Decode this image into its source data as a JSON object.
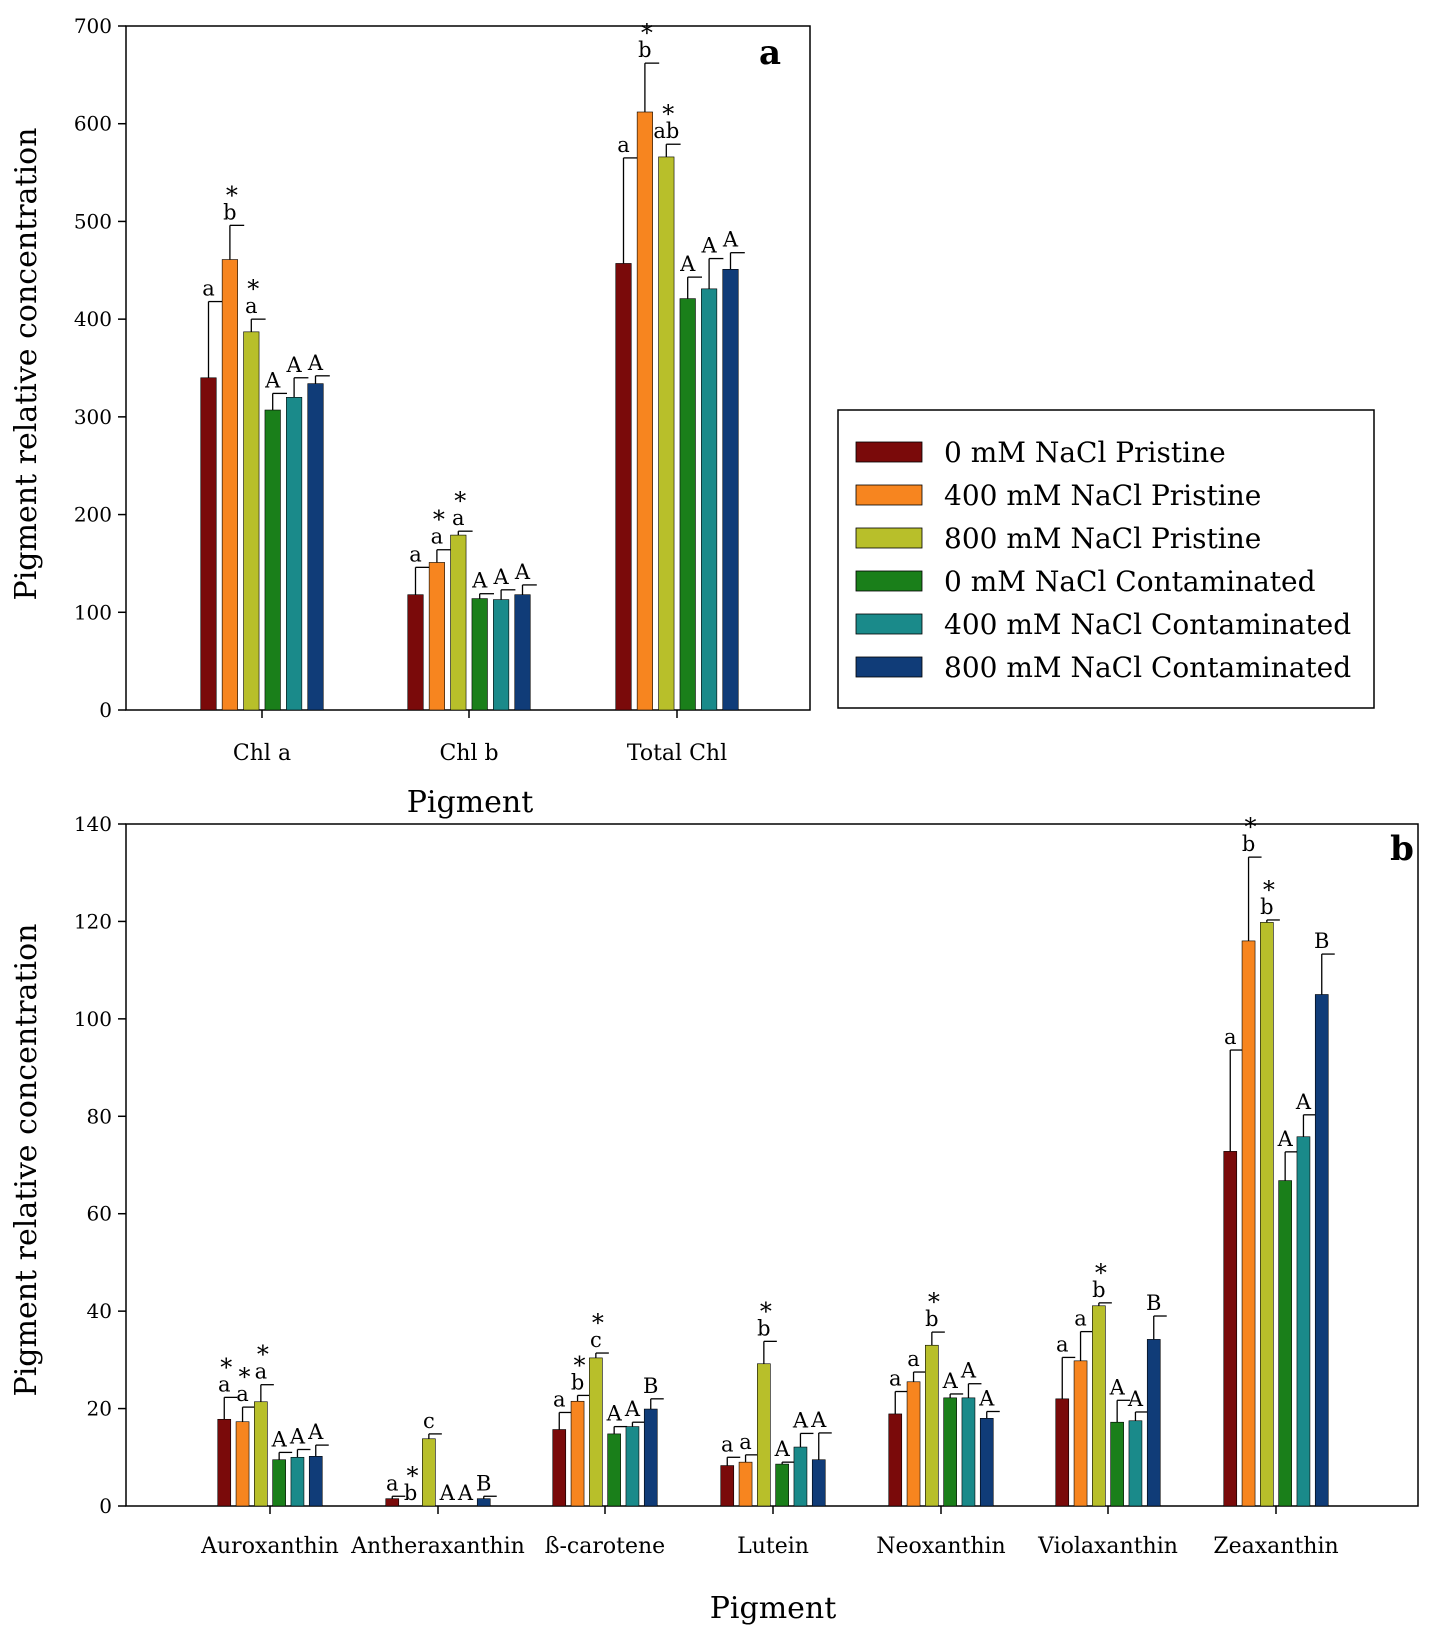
{
  "legend": [
    {
      "name": "0 mM NaCl Pristine",
      "color": "#7a0a0a"
    },
    {
      "name": "400 mM NaCl Pristine",
      "color": "#f7851f"
    },
    {
      "name": "800 mM NaCl Pristine",
      "color": "#b8bf2a"
    },
    {
      "name": "0 mM NaCl Contaminated",
      "color": "#1a7f1a"
    },
    {
      "name": "400 mM NaCl Contaminated",
      "color": "#1a8a8a"
    },
    {
      "name": "800 mM NaCl Contaminated",
      "color": "#103c78"
    }
  ],
  "chart_data": [
    {
      "id": "a",
      "type": "bar",
      "panel_label": "a",
      "xlabel": "Pigment",
      "ylabel": "Pigment relative concentration",
      "ylim": [
        0,
        700
      ],
      "yticks": [
        0,
        100,
        200,
        300,
        400,
        500,
        600,
        700
      ],
      "categories": [
        "Chl a",
        "Chl b",
        "Total Chl"
      ],
      "series": [
        {
          "name": "0 mM NaCl Pristine",
          "values": [
            340,
            118,
            457
          ],
          "errors": [
            78,
            28,
            108
          ],
          "letters": [
            "a",
            "a",
            "a"
          ],
          "stars": [
            false,
            false,
            false
          ]
        },
        {
          "name": "400 mM NaCl Pristine",
          "values": [
            461,
            151,
            612
          ],
          "errors": [
            35,
            13,
            50
          ],
          "letters": [
            "b",
            "a",
            "b"
          ],
          "stars": [
            true,
            true,
            true
          ]
        },
        {
          "name": "800 mM NaCl Pristine",
          "values": [
            387,
            179,
            566
          ],
          "errors": [
            13,
            4,
            13
          ],
          "letters": [
            "a",
            "a",
            "ab"
          ],
          "stars": [
            true,
            true,
            true
          ]
        },
        {
          "name": "0 mM NaCl Contaminated",
          "values": [
            307,
            114,
            421
          ],
          "errors": [
            17,
            5,
            22
          ],
          "letters": [
            "A",
            "A",
            "A"
          ],
          "stars": [
            false,
            false,
            false
          ]
        },
        {
          "name": "400 mM NaCl Contaminated",
          "values": [
            320,
            113,
            431
          ],
          "errors": [
            20,
            10,
            31
          ],
          "letters": [
            "A",
            "A",
            "A"
          ],
          "stars": [
            false,
            false,
            false
          ]
        },
        {
          "name": "800 mM NaCl Contaminated",
          "values": [
            334,
            118,
            451
          ],
          "errors": [
            8,
            10,
            17
          ],
          "letters": [
            "A",
            "A",
            "A"
          ],
          "stars": [
            false,
            false,
            false
          ]
        }
      ]
    },
    {
      "id": "b",
      "type": "bar",
      "panel_label": "b",
      "xlabel": "Pigment",
      "ylabel": "Pigment relative concentration",
      "ylim": [
        0,
        140
      ],
      "yticks": [
        0,
        20,
        40,
        60,
        80,
        100,
        120,
        140
      ],
      "categories": [
        "Auroxanthin",
        "Antheraxanthin",
        "ß-carotene",
        "Lutein",
        "Neoxanthin",
        "Violaxanthin",
        "Zeaxanthin"
      ],
      "series": [
        {
          "name": "0 mM NaCl Pristine",
          "values": [
            17.8,
            1.5,
            15.7,
            8.3,
            18.9,
            22.0,
            72.8
          ],
          "errors": [
            4.5,
            0.5,
            3.5,
            1.7,
            4.6,
            8.5,
            20.8
          ],
          "letters": [
            "a",
            "a",
            "a",
            "a",
            "a",
            "a",
            "a"
          ],
          "stars": [
            true,
            false,
            false,
            false,
            false,
            false,
            false
          ]
        },
        {
          "name": "400 mM NaCl Pristine",
          "values": [
            17.3,
            0,
            21.5,
            9.0,
            25.5,
            29.8,
            116.0
          ],
          "errors": [
            3.0,
            0,
            1.2,
            1.5,
            2.0,
            6.0,
            17.2
          ],
          "letters": [
            "a",
            "b",
            "b",
            "a",
            "a",
            "a",
            "b"
          ],
          "stars": [
            true,
            true,
            true,
            false,
            false,
            false,
            true
          ]
        },
        {
          "name": "800 mM NaCl Pristine",
          "values": [
            21.4,
            13.8,
            30.4,
            29.2,
            33.0,
            41.1,
            119.8
          ],
          "errors": [
            3.5,
            1.0,
            1.0,
            4.6,
            2.7,
            0.6,
            0.5
          ],
          "letters": [
            "a",
            "c",
            "c",
            "b",
            "b",
            "b",
            "b"
          ],
          "stars": [
            true,
            false,
            true,
            true,
            true,
            true,
            true
          ]
        },
        {
          "name": "0 mM NaCl Contaminated",
          "values": [
            9.5,
            0,
            14.8,
            8.6,
            22.2,
            17.2,
            66.8
          ],
          "errors": [
            1.5,
            0,
            1.5,
            0.4,
            0.8,
            4.5,
            5.9
          ],
          "letters": [
            "A",
            "A",
            "A",
            "A",
            "A",
            "A",
            "A"
          ],
          "stars": [
            false,
            false,
            false,
            false,
            false,
            false,
            false
          ]
        },
        {
          "name": "400 mM NaCl Contaminated",
          "values": [
            10.0,
            0,
            16.3,
            12.1,
            22.2,
            17.5,
            75.8
          ],
          "errors": [
            1.6,
            0,
            0.9,
            2.8,
            2.9,
            1.8,
            4.5
          ],
          "letters": [
            "A",
            "A",
            "A",
            "A",
            "A",
            "A",
            "A"
          ],
          "stars": [
            false,
            false,
            false,
            false,
            false,
            false,
            false
          ]
        },
        {
          "name": "800 mM NaCl Contaminated",
          "values": [
            10.2,
            1.5,
            19.9,
            9.5,
            18.0,
            34.2,
            105.0
          ],
          "errors": [
            2.3,
            0.5,
            2.1,
            5.5,
            1.4,
            4.8,
            8.3
          ],
          "letters": [
            "A",
            "B",
            "B",
            "A",
            "A",
            "B",
            "B"
          ],
          "stars": [
            false,
            false,
            false,
            false,
            false,
            false,
            false
          ]
        }
      ]
    }
  ]
}
